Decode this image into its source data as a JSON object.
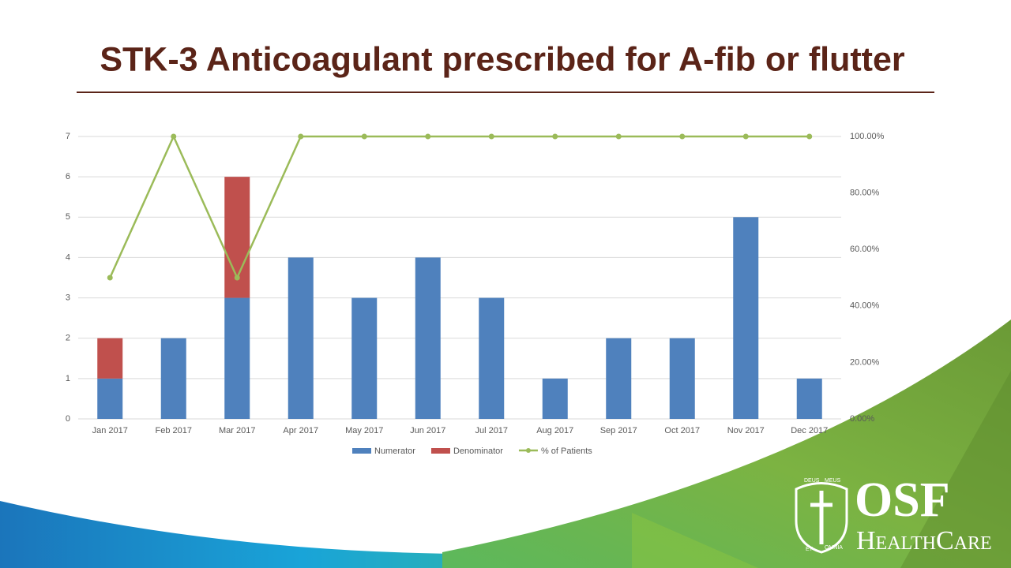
{
  "chart_data": {
    "type": "bar",
    "stacked": true,
    "title": "STK-3 Anticoagulant prescribed for A-fib or flutter",
    "categories": [
      "Jan 2017",
      "Feb 2017",
      "Mar 2017",
      "Apr 2017",
      "May 2017",
      "Jun 2017",
      "Jul 2017",
      "Aug 2017",
      "Sep 2017",
      "Oct 2017",
      "Nov 2017",
      "Dec 2017"
    ],
    "series": [
      {
        "name": "Numerator",
        "color": "#4f81bd",
        "type": "bar",
        "values": [
          1,
          2,
          3,
          4,
          3,
          4,
          3,
          1,
          2,
          2,
          5,
          1
        ]
      },
      {
        "name": "Denominator",
        "color": "#c0504d",
        "type": "bar",
        "values": [
          1,
          0,
          3,
          0,
          0,
          0,
          0,
          0,
          0,
          0,
          0,
          0
        ]
      },
      {
        "name": "% of Patients",
        "color": "#9bbb59",
        "type": "line",
        "axis": "y2",
        "values": [
          50,
          100,
          50,
          100,
          100,
          100,
          100,
          100,
          100,
          100,
          100,
          100
        ]
      }
    ],
    "ylim": [
      0,
      7
    ],
    "yticks": [
      0,
      1,
      2,
      3,
      4,
      5,
      6,
      7
    ],
    "y2lim": [
      0,
      100
    ],
    "y2ticks": [
      {
        "value": 0,
        "label": "0.00%"
      },
      {
        "value": 20,
        "label": "20.00%"
      },
      {
        "value": 40,
        "label": "40.00%"
      },
      {
        "value": 60,
        "label": "60.00%"
      },
      {
        "value": 80,
        "label": "80.00%"
      },
      {
        "value": 100,
        "label": "100.00%"
      }
    ],
    "grid": true,
    "legend": "bottom"
  },
  "logo": {
    "name": "OSF",
    "sub": "HealthCare",
    "motto": [
      "DEUS",
      "MEUS",
      "ET",
      "OMNIA"
    ]
  }
}
